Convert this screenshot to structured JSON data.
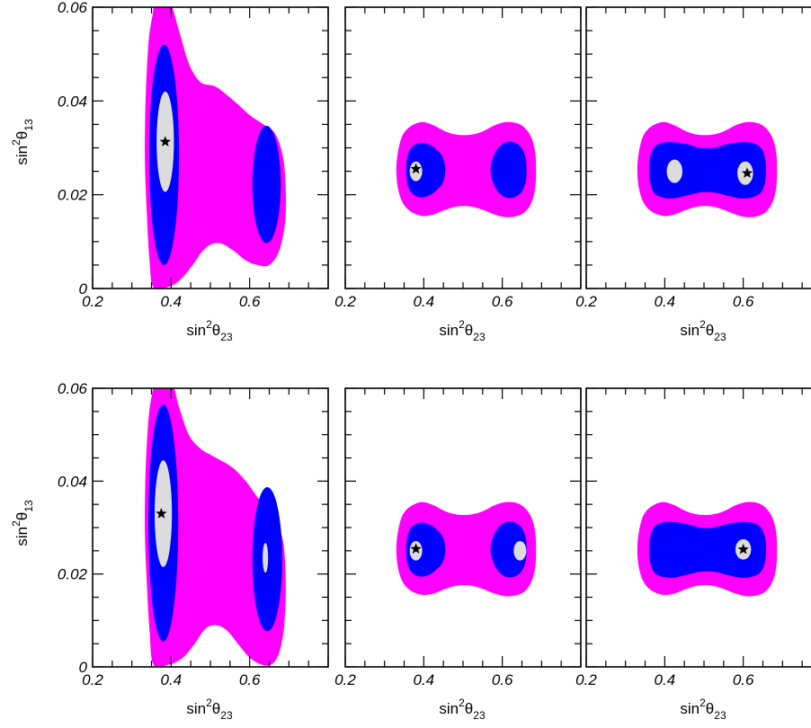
{
  "chart_data": [
    {
      "type": "contour",
      "panel": "top-left",
      "xlabel": "sin²θ23",
      "ylabel": "sin²θ13",
      "xlim": [
        0.2,
        0.8
      ],
      "ylim": [
        0,
        0.06
      ],
      "xticks": [
        "0.2",
        "0.4",
        "0.6"
      ],
      "yticks": [
        "0",
        "0.02",
        "0.04",
        "0.06"
      ],
      "best_fit": [
        0.385,
        0.0313
      ],
      "regions": [
        {
          "level": "outer",
          "color": "#ff00ff",
          "shape": "blob-tl"
        },
        {
          "level": "middle",
          "color": "#0000ff",
          "shape": "two-islands-tl"
        },
        {
          "level": "inner",
          "color": "#dcdcdc",
          "shape": "ellipse",
          "cx": 0.385,
          "cy": 0.0313,
          "rx": 0.022,
          "ry": 0.0107
        }
      ]
    },
    {
      "type": "contour",
      "panel": "top-middle",
      "xlabel": "sin²θ23",
      "xlim": [
        0.2,
        0.8
      ],
      "ylim": [
        0,
        0.06
      ],
      "xticks": [
        "0.2",
        "0.4",
        "0.6"
      ],
      "best_fit": [
        0.38,
        0.0255
      ],
      "regions": [
        {
          "level": "outer",
          "color": "#ff00ff",
          "shape": "peanut-wide"
        },
        {
          "level": "middle",
          "color": "#0000ff",
          "shape": "peanut-split"
        },
        {
          "level": "inner",
          "color": "#dcdcdc",
          "shape": "ellipse",
          "cx": 0.38,
          "cy": 0.025,
          "rx": 0.016,
          "ry": 0.0021
        }
      ]
    },
    {
      "type": "contour",
      "panel": "top-right",
      "xlabel": "sin²θ23",
      "xlim": [
        0.2,
        0.8
      ],
      "ylim": [
        0,
        0.06
      ],
      "xticks": [
        "0.2",
        "0.4",
        "0.6"
      ],
      "best_fit": [
        0.61,
        0.0246
      ],
      "regions": [
        {
          "level": "outer",
          "color": "#ff00ff",
          "shape": "peanut-wide"
        },
        {
          "level": "middle",
          "color": "#0000ff",
          "shape": "peanut-joined"
        },
        {
          "level": "inner",
          "color": "#dcdcdc",
          "shape": "two-ellipses",
          "centers": [
            [
              0.425,
              0.025
            ],
            [
              0.605,
              0.0246
            ]
          ],
          "rx": 0.02,
          "ry": 0.0025
        }
      ]
    },
    {
      "type": "contour",
      "panel": "bottom-left",
      "xlabel": "sin²θ23",
      "ylabel": "sin²θ13",
      "xlim": [
        0.2,
        0.8
      ],
      "ylim": [
        0,
        0.06
      ],
      "xticks": [
        "0.2",
        "0.4",
        "0.6"
      ],
      "yticks": [
        "0",
        "0.02",
        "0.04",
        "0.06"
      ],
      "best_fit": [
        0.375,
        0.033
      ],
      "regions": [
        {
          "level": "outer",
          "color": "#ff00ff",
          "shape": "blob-bl"
        },
        {
          "level": "middle",
          "color": "#0000ff",
          "shape": "two-islands-bl"
        },
        {
          "level": "inner",
          "color": "#dcdcdc",
          "shape": "two-ellipses",
          "centers": [
            [
              0.38,
              0.033
            ],
            [
              0.64,
              0.0235
            ]
          ],
          "rx": 0.022,
          "ry": 0.0115
        }
      ]
    },
    {
      "type": "contour",
      "panel": "bottom-middle",
      "xlabel": "sin²θ23",
      "xlim": [
        0.2,
        0.8
      ],
      "ylim": [
        0,
        0.06
      ],
      "xticks": [
        "0.2",
        "0.4",
        "0.6"
      ],
      "best_fit": [
        0.38,
        0.0254
      ],
      "regions": [
        {
          "level": "outer",
          "color": "#ff00ff",
          "shape": "peanut-wide"
        },
        {
          "level": "middle",
          "color": "#0000ff",
          "shape": "peanut-split"
        },
        {
          "level": "inner",
          "color": "#dcdcdc",
          "shape": "two-ellipses",
          "centers": [
            [
              0.38,
              0.025
            ],
            [
              0.645,
              0.025
            ]
          ],
          "rx": 0.016,
          "ry": 0.0021
        }
      ]
    },
    {
      "type": "contour",
      "panel": "bottom-right",
      "xlabel": "sin²θ23",
      "xlim": [
        0.2,
        0.8
      ],
      "ylim": [
        0,
        0.06
      ],
      "xticks": [
        "0.2",
        "0.4",
        "0.6"
      ],
      "best_fit": [
        0.6,
        0.0253
      ],
      "regions": [
        {
          "level": "outer",
          "color": "#ff00ff",
          "shape": "peanut-wide"
        },
        {
          "level": "middle",
          "color": "#0000ff",
          "shape": "peanut-joined"
        },
        {
          "level": "inner",
          "color": "#dcdcdc",
          "shape": "ellipse",
          "cx": 0.6,
          "cy": 0.0253,
          "rx": 0.02,
          "ry": 0.0022
        }
      ]
    }
  ],
  "colors": {
    "outer": "#ff00ff",
    "middle": "#0000ff",
    "inner": "#dcdcdc",
    "frame": "#000000"
  }
}
